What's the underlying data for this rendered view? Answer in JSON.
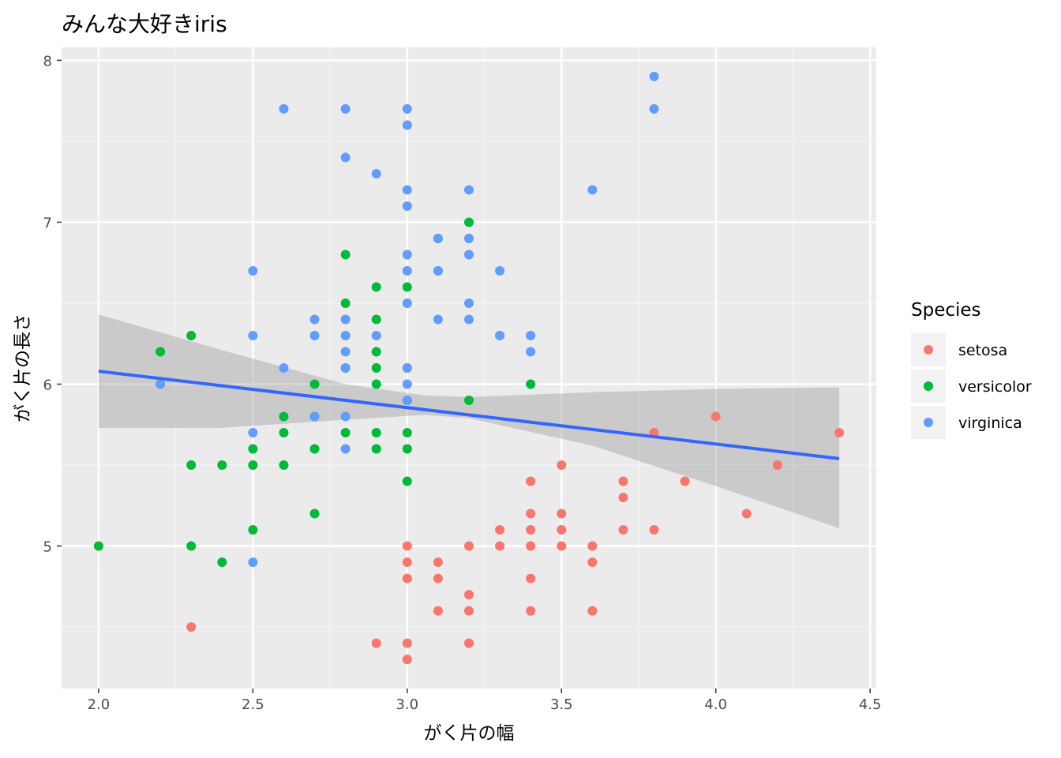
{
  "chart_data": {
    "type": "scatter",
    "title": "みんな大好きiris",
    "xlabel": "がく片の幅",
    "ylabel": "がく片の長さ",
    "xlim": [
      1.88,
      4.52
    ],
    "ylim": [
      4.12,
      8.08
    ],
    "x_ticks": [
      "2.0",
      "2.5",
      "3.0",
      "3.5",
      "4.0",
      "4.5"
    ],
    "y_ticks": [
      "5",
      "6",
      "7",
      "8"
    ],
    "grid": true,
    "background": "#ebebeb",
    "legend": {
      "title": "Species",
      "position": "right",
      "entries": [
        "setosa",
        "versicolor",
        "virginica"
      ]
    },
    "colors": {
      "setosa": "#f8766d",
      "versicolor": "#00ba38",
      "virginica": "#619cff",
      "trend_line": "#3366ff",
      "confidence_band": "#c4c4c4"
    },
    "series": [
      {
        "name": "setosa",
        "points": [
          [
            2.3,
            4.5
          ],
          [
            2.9,
            4.4
          ],
          [
            3.0,
            4.4
          ],
          [
            3.0,
            4.3
          ],
          [
            3.0,
            5.0
          ],
          [
            3.0,
            4.9
          ],
          [
            3.0,
            4.8
          ],
          [
            3.1,
            4.9
          ],
          [
            3.1,
            4.8
          ],
          [
            3.1,
            4.6
          ],
          [
            3.2,
            5.0
          ],
          [
            3.2,
            4.7
          ],
          [
            3.2,
            4.6
          ],
          [
            3.2,
            4.4
          ],
          [
            3.3,
            5.1
          ],
          [
            3.3,
            5.0
          ],
          [
            3.4,
            5.4
          ],
          [
            3.4,
            5.2
          ],
          [
            3.4,
            5.1
          ],
          [
            3.4,
            5.0
          ],
          [
            3.4,
            4.8
          ],
          [
            3.4,
            4.6
          ],
          [
            3.5,
            5.5
          ],
          [
            3.5,
            5.2
          ],
          [
            3.5,
            5.1
          ],
          [
            3.5,
            5.0
          ],
          [
            3.6,
            5.0
          ],
          [
            3.6,
            4.9
          ],
          [
            3.6,
            4.6
          ],
          [
            3.7,
            5.4
          ],
          [
            3.7,
            5.3
          ],
          [
            3.7,
            5.1
          ],
          [
            3.8,
            5.7
          ],
          [
            3.8,
            5.1
          ],
          [
            3.9,
            5.4
          ],
          [
            4.0,
            5.8
          ],
          [
            4.1,
            5.2
          ],
          [
            4.2,
            5.5
          ],
          [
            4.4,
            5.7
          ]
        ]
      },
      {
        "name": "versicolor",
        "points": [
          [
            2.0,
            5.0
          ],
          [
            2.2,
            6.2
          ],
          [
            2.2,
            6.0
          ],
          [
            2.3,
            6.3
          ],
          [
            2.3,
            5.5
          ],
          [
            2.3,
            5.0
          ],
          [
            2.4,
            5.5
          ],
          [
            2.4,
            4.9
          ],
          [
            2.5,
            5.6
          ],
          [
            2.5,
            5.5
          ],
          [
            2.5,
            5.1
          ],
          [
            2.6,
            5.8
          ],
          [
            2.6,
            5.7
          ],
          [
            2.6,
            5.5
          ],
          [
            2.7,
            6.0
          ],
          [
            2.7,
            5.8
          ],
          [
            2.7,
            5.6
          ],
          [
            2.7,
            5.2
          ],
          [
            2.8,
            6.8
          ],
          [
            2.8,
            6.5
          ],
          [
            2.8,
            6.1
          ],
          [
            2.8,
            5.7
          ],
          [
            2.9,
            6.6
          ],
          [
            2.9,
            6.4
          ],
          [
            2.9,
            6.2
          ],
          [
            2.9,
            6.1
          ],
          [
            2.9,
            6.0
          ],
          [
            2.9,
            5.7
          ],
          [
            2.9,
            5.6
          ],
          [
            3.0,
            6.6
          ],
          [
            3.0,
            6.1
          ],
          [
            3.0,
            5.9
          ],
          [
            3.0,
            5.7
          ],
          [
            3.0,
            5.6
          ],
          [
            3.0,
            5.4
          ],
          [
            3.1,
            6.7
          ],
          [
            3.1,
            6.9
          ],
          [
            3.2,
            7.0
          ],
          [
            3.2,
            5.9
          ],
          [
            3.3,
            6.3
          ],
          [
            3.4,
            6.0
          ]
        ]
      },
      {
        "name": "virginica",
        "points": [
          [
            2.2,
            6.0
          ],
          [
            2.5,
            6.7
          ],
          [
            2.5,
            6.3
          ],
          [
            2.5,
            5.7
          ],
          [
            2.5,
            4.9
          ],
          [
            2.6,
            7.7
          ],
          [
            2.6,
            6.1
          ],
          [
            2.7,
            6.4
          ],
          [
            2.7,
            6.3
          ],
          [
            2.7,
            5.8
          ],
          [
            2.8,
            7.7
          ],
          [
            2.8,
            7.4
          ],
          [
            2.8,
            6.4
          ],
          [
            2.8,
            6.3
          ],
          [
            2.8,
            6.2
          ],
          [
            2.8,
            6.1
          ],
          [
            2.8,
            5.8
          ],
          [
            2.8,
            5.6
          ],
          [
            2.9,
            7.3
          ],
          [
            2.9,
            6.3
          ],
          [
            3.0,
            7.7
          ],
          [
            3.0,
            7.6
          ],
          [
            3.0,
            7.2
          ],
          [
            3.0,
            7.1
          ],
          [
            3.0,
            6.8
          ],
          [
            3.0,
            6.7
          ],
          [
            3.0,
            6.5
          ],
          [
            3.0,
            6.1
          ],
          [
            3.0,
            6.0
          ],
          [
            3.0,
            5.9
          ],
          [
            3.1,
            6.9
          ],
          [
            3.1,
            6.7
          ],
          [
            3.1,
            6.4
          ],
          [
            3.2,
            7.2
          ],
          [
            3.2,
            6.9
          ],
          [
            3.2,
            6.8
          ],
          [
            3.2,
            6.5
          ],
          [
            3.2,
            6.4
          ],
          [
            3.3,
            6.7
          ],
          [
            3.3,
            6.3
          ],
          [
            3.4,
            6.3
          ],
          [
            3.4,
            6.2
          ],
          [
            3.6,
            7.2
          ],
          [
            3.8,
            7.9
          ],
          [
            3.8,
            7.7
          ]
        ]
      }
    ],
    "trend_line": {
      "method": "linear",
      "x": [
        2.0,
        4.4
      ],
      "y": [
        6.08,
        5.54
      ],
      "confidence_band": {
        "x": [
          2.0,
          2.4,
          2.8,
          3.057,
          3.2,
          3.6,
          4.0,
          4.4
        ],
        "lower": [
          5.73,
          5.73,
          5.78,
          5.81,
          5.79,
          5.62,
          5.37,
          5.11
        ],
        "upper": [
          6.43,
          6.21,
          6.0,
          5.93,
          5.92,
          5.95,
          5.97,
          5.98
        ]
      }
    }
  }
}
